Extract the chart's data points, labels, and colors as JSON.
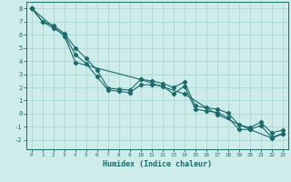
{
  "xlabel": "Humidex (Indice chaleur)",
  "bg_color": "#cdecea",
  "grid_color": "#aad8d4",
  "line_color": "#1a6b6b",
  "xlim": [
    -0.5,
    23.5
  ],
  "ylim": [
    -2.7,
    8.5
  ],
  "xticks": [
    0,
    1,
    2,
    3,
    4,
    5,
    6,
    7,
    8,
    9,
    10,
    11,
    12,
    13,
    14,
    15,
    16,
    17,
    18,
    19,
    20,
    21,
    22,
    23
  ],
  "yticks": [
    -2,
    -1,
    0,
    1,
    2,
    3,
    4,
    5,
    6,
    7,
    8
  ],
  "line1_x": [
    0,
    1,
    2,
    3,
    4,
    5,
    6,
    7,
    8,
    9,
    10,
    11,
    12,
    13,
    14,
    15,
    16,
    17,
    18,
    19,
    20,
    21,
    22,
    23
  ],
  "line1_y": [
    8.0,
    7.0,
    6.5,
    6.0,
    4.5,
    3.8,
    2.8,
    1.8,
    1.7,
    1.6,
    2.2,
    2.2,
    2.1,
    1.5,
    2.1,
    0.35,
    0.2,
    0.1,
    -0.3,
    -1.2,
    -1.2,
    -0.9,
    -1.8,
    -1.5
  ],
  "line2_x": [
    0,
    1,
    2,
    3,
    4,
    5,
    6,
    7,
    8,
    9,
    10,
    11,
    12,
    13,
    14,
    15,
    16,
    17,
    18,
    19,
    20,
    21,
    22,
    23
  ],
  "line2_y": [
    8.0,
    7.0,
    6.7,
    6.1,
    5.0,
    4.2,
    3.3,
    1.95,
    1.85,
    1.8,
    2.6,
    2.5,
    2.3,
    2.0,
    2.4,
    0.6,
    0.45,
    0.35,
    0.05,
    -0.85,
    -1.05,
    -0.65,
    -1.45,
    -1.25
  ],
  "line3_x": [
    0,
    2,
    3,
    4,
    10,
    14,
    17,
    20,
    22,
    23
  ],
  "line3_y": [
    8.0,
    6.6,
    5.9,
    3.9,
    2.6,
    1.5,
    -0.05,
    -1.2,
    -1.85,
    -1.55
  ]
}
